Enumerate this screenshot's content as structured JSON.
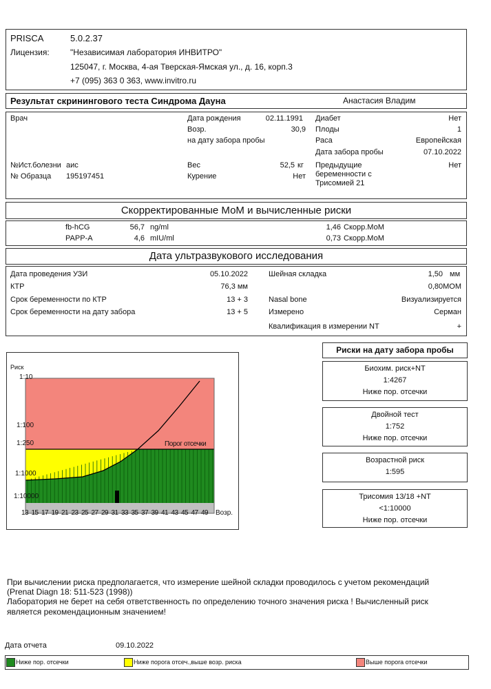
{
  "header": {
    "program": "PRISCA",
    "version": "5.0.2.37",
    "license_label": "Лицензия:",
    "license_lines": [
      "\"Независимая лаборатория ИНВИТРО\"",
      "125047, г. Москва, 4-ая Тверская-Ямская ул., д. 16, корп.3",
      "+7 (095) 363 0 363, www.invitro.ru"
    ]
  },
  "title": {
    "text": "Результат скринингового теста Синдрома Дауна",
    "patient": "Анастасия Владим"
  },
  "patient": {
    "doctor_label": "Врач",
    "birth_label": "Дата рождения",
    "birth": "02.11.1991",
    "age_label": "Возр.",
    "age": "30,9",
    "age_note": "на дату забора пробы",
    "history_label": "№Ист.болезни",
    "history": "аис",
    "sample_label": "№ Образца",
    "sample": "195197451",
    "weight_label": "Вес",
    "weight": "52,5",
    "weight_unit": "кг",
    "smoking_label": "Курение",
    "smoking": "Нет",
    "diabetes_label": "Диабет",
    "diabetes": "Нет",
    "fetuses_label": "Плоды",
    "fetuses": "1",
    "race_label": "Раса",
    "race": "Европейская",
    "sample_date_label": "Дата забора пробы",
    "sample_date": "07.10.2022",
    "prev_label": "Предыдущие беременности с Трисомией 21",
    "prev": "Нет"
  },
  "mom": {
    "title": "Скорректированные МоМ и вычисленные риски",
    "rows": [
      {
        "marker": "fb-hCG",
        "value": "56,7",
        "unit": "ng/ml",
        "mom": "1,46",
        "mom_label": "Скорр.МоМ"
      },
      {
        "marker": "PAPP-A",
        "value": "4,6",
        "unit": "mIU/ml",
        "mom": "0,73",
        "mom_label": "Скорр.МоМ"
      }
    ]
  },
  "ultrasound": {
    "title": "Дата ультразвукового исследования",
    "left": [
      {
        "label": "Дата проведения УЗИ",
        "value": "05.10.2022"
      },
      {
        "label": "КТР",
        "value": "76,3 мм"
      },
      {
        "label": "Срок беременности по КТР",
        "value": "13 +  3"
      },
      {
        "label": "Срок беременности на дату забора",
        "value": "13 +  5"
      }
    ],
    "right": [
      {
        "label": "Шейная складка",
        "value": "1,50",
        "unit": "мм"
      },
      {
        "value": "0,80МОМ"
      },
      {
        "label": "Nasal bone",
        "value": "Визуализируется"
      },
      {
        "label": "Измерено",
        "value": "Серман"
      },
      {
        "label": "Квалификация в измерении NT",
        "value": "+"
      }
    ]
  },
  "chart": {
    "y_label": "Риск",
    "y_ticks": [
      "1:10",
      "1:100",
      "1:250",
      "1:1000",
      "1:10000"
    ],
    "x_ticks": [
      13,
      15,
      17,
      19,
      21,
      23,
      25,
      27,
      29,
      31,
      33,
      35,
      37,
      39,
      41,
      43,
      45,
      47,
      49
    ],
    "x_label": "Возр.",
    "cutoff_label": "Порог отсечки"
  },
  "risks": {
    "title": "Риски на дату забора пробы",
    "boxes": [
      {
        "name": "Биохим. риск+NT",
        "value": "1:4267",
        "verdict": "Ниже пор. отсечки"
      },
      {
        "name": "Двойной тест",
        "value": "1:752",
        "verdict": "Ниже пор. отсечки"
      },
      {
        "name": "Возрастной риск",
        "value": "1:595"
      },
      {
        "name": "Трисомия 13/18 +NT",
        "value": "<1:10000",
        "verdict": "Ниже пор. отсечки"
      }
    ]
  },
  "notes": [
    "При вычислении риска предполагается, что измерение шейной складки проводилось с учетом рекомендаций",
    "(Prenat Diagn 18: 511-523 (1998))",
    "Лаборатория не берет на себя ответственность по определению точного значения риска ! Вычисленный риск",
    "является рекомендационным значением!"
  ],
  "footer": {
    "report_label": "Дата отчета",
    "report_date": "09.10.2022",
    "legend": [
      {
        "label": "Ниже пор. отсечки",
        "color": "#1f8a1f"
      },
      {
        "label": "Ниже порога отсеч.,выше возр. риска",
        "color": "#ffff00"
      },
      {
        "label": "Выше порога отсечки",
        "color": "#f3857c"
      }
    ]
  }
}
